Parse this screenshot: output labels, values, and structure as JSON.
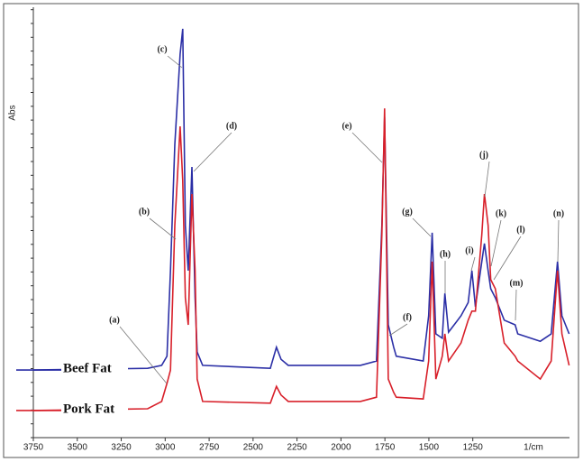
{
  "chart_data": {
    "type": "line",
    "y_label": "Abs",
    "x_label": "1/cm",
    "x": [
      3750,
      3100,
      3020,
      2990,
      2970,
      2945,
      2915,
      2900,
      2885,
      2869,
      2848,
      2830,
      2818,
      2787,
      2402,
      2367,
      2341,
      2300,
      1890,
      1798,
      1767,
      1752,
      1731,
      1700,
      1685,
      1532,
      1501,
      1481,
      1460,
      1424,
      1409,
      1388,
      1317,
      1276,
      1255,
      1235,
      1199,
      1184,
      1163,
      1148,
      1122,
      1071,
      1009,
      994,
      866,
      804,
      768,
      743,
      702
    ],
    "series": [
      {
        "name": "Beef Fat",
        "color": "#2b2fa6",
        "values": [
          15.7,
          16.1,
          16.8,
          18.9,
          38.8,
          68.1,
          89.1,
          95.0,
          49.3,
          38.8,
          62.9,
          32.5,
          19.9,
          16.8,
          16.1,
          21.0,
          18.2,
          16.8,
          16.8,
          17.8,
          49.3,
          74.4,
          26.2,
          21.0,
          18.9,
          17.8,
          28.3,
          47.6,
          24.1,
          23.1,
          33.5,
          24.5,
          28.3,
          31.4,
          38.8,
          30.4,
          40.9,
          45.1,
          38.8,
          34.6,
          32.5,
          27.3,
          26.2,
          24.1,
          22.4,
          24.1,
          40.9,
          28.3,
          24.1
        ]
      },
      {
        "name": "Pork Fat",
        "color": "#d8202a",
        "values": [
          6.3,
          6.7,
          8.4,
          12.6,
          15.7,
          49.3,
          72.3,
          59.7,
          32.5,
          26.2,
          56.6,
          38.8,
          13.6,
          8.4,
          8.0,
          11.9,
          9.9,
          8.4,
          8.4,
          9.4,
          47.2,
          76.5,
          13.6,
          10.5,
          9.4,
          9.0,
          17.8,
          40.9,
          13.6,
          18.9,
          24.1,
          17.8,
          22.0,
          27.3,
          29.4,
          29.4,
          47.2,
          56.6,
          49.3,
          36.7,
          34.6,
          22.0,
          18.9,
          17.8,
          13.6,
          17.8,
          38.8,
          24.1,
          16.8
        ]
      }
    ],
    "xlim": [
      3750,
      700
    ],
    "ylim": [
      0,
      100
    ],
    "xticks": [
      3750,
      3500,
      3250,
      3000,
      2750,
      2500,
      2250,
      2000,
      1750,
      1500,
      1250
    ],
    "annotations": [
      "(a)",
      "(b)",
      "(c)",
      "(d)",
      "(e)",
      "(f)",
      "(g)",
      "(h)",
      "(i)",
      "(j)",
      "(k)",
      "(l)",
      "(m)",
      "(n)"
    ]
  }
}
